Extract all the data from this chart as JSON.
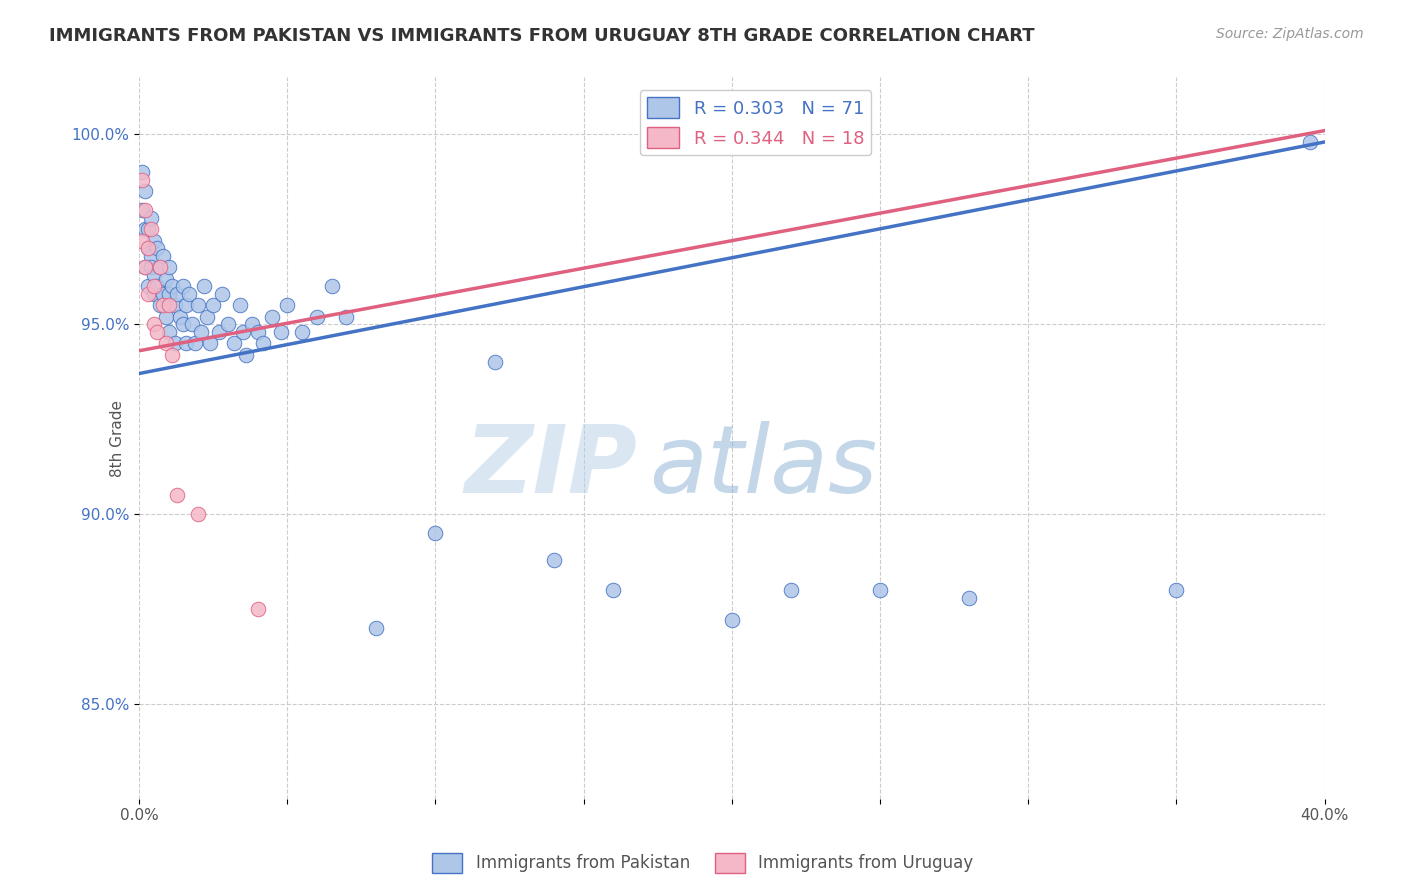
{
  "title": "IMMIGRANTS FROM PAKISTAN VS IMMIGRANTS FROM URUGUAY 8TH GRADE CORRELATION CHART",
  "source_text": "Source: ZipAtlas.com",
  "ylabel": "8th Grade",
  "xlim": [
    0.0,
    0.4
  ],
  "ylim": [
    0.825,
    1.015
  ],
  "xticks": [
    0.0,
    0.05,
    0.1,
    0.15,
    0.2,
    0.25,
    0.3,
    0.35,
    0.4
  ],
  "xticklabels": [
    "0.0%",
    "",
    "",
    "",
    "",
    "",
    "",
    "",
    "40.0%"
  ],
  "yticks": [
    0.85,
    0.9,
    0.95,
    1.0
  ],
  "yticklabels": [
    "85.0%",
    "90.0%",
    "95.0%",
    "100.0%"
  ],
  "pakistan_R": 0.303,
  "pakistan_N": 71,
  "uruguay_R": 0.344,
  "uruguay_N": 18,
  "pakistan_color": "#aec6e8",
  "pakistan_line_color": "#4472c4",
  "uruguay_color": "#f4b8c8",
  "uruguay_line_color": "#e06080",
  "legend_pakistan": "Immigrants from Pakistan",
  "legend_uruguay": "Immigrants from Uruguay",
  "watermark_zip": "ZIP",
  "watermark_atlas": "atlas",
  "pak_line_x0": 0.0,
  "pak_line_y0": 0.937,
  "pak_line_x1": 0.4,
  "pak_line_y1": 0.998,
  "uru_line_x0": 0.0,
  "uru_line_y0": 0.943,
  "uru_line_x1": 0.4,
  "uru_line_y1": 1.001,
  "pakistan_scatter_x": [
    0.001,
    0.001,
    0.002,
    0.002,
    0.002,
    0.003,
    0.003,
    0.003,
    0.004,
    0.004,
    0.004,
    0.005,
    0.005,
    0.005,
    0.006,
    0.006,
    0.007,
    0.007,
    0.008,
    0.008,
    0.009,
    0.009,
    0.01,
    0.01,
    0.01,
    0.011,
    0.012,
    0.012,
    0.013,
    0.014,
    0.015,
    0.015,
    0.016,
    0.016,
    0.017,
    0.018,
    0.019,
    0.02,
    0.021,
    0.022,
    0.023,
    0.024,
    0.025,
    0.027,
    0.028,
    0.03,
    0.032,
    0.034,
    0.035,
    0.036,
    0.038,
    0.04,
    0.042,
    0.045,
    0.048,
    0.05,
    0.055,
    0.06,
    0.065,
    0.07,
    0.08,
    0.1,
    0.12,
    0.14,
    0.16,
    0.2,
    0.22,
    0.25,
    0.28,
    0.35,
    0.395
  ],
  "pakistan_scatter_y": [
    0.98,
    0.99,
    0.965,
    0.985,
    0.975,
    0.97,
    0.96,
    0.975,
    0.968,
    0.978,
    0.965,
    0.972,
    0.963,
    0.958,
    0.97,
    0.96,
    0.965,
    0.955,
    0.968,
    0.958,
    0.962,
    0.952,
    0.965,
    0.958,
    0.948,
    0.96,
    0.955,
    0.945,
    0.958,
    0.952,
    0.96,
    0.95,
    0.955,
    0.945,
    0.958,
    0.95,
    0.945,
    0.955,
    0.948,
    0.96,
    0.952,
    0.945,
    0.955,
    0.948,
    0.958,
    0.95,
    0.945,
    0.955,
    0.948,
    0.942,
    0.95,
    0.948,
    0.945,
    0.952,
    0.948,
    0.955,
    0.948,
    0.952,
    0.96,
    0.952,
    0.87,
    0.895,
    0.94,
    0.888,
    0.88,
    0.872,
    0.88,
    0.88,
    0.878,
    0.88,
    0.998
  ],
  "uruguay_scatter_x": [
    0.001,
    0.001,
    0.002,
    0.002,
    0.003,
    0.003,
    0.004,
    0.005,
    0.005,
    0.006,
    0.007,
    0.008,
    0.009,
    0.01,
    0.011,
    0.013,
    0.02,
    0.04
  ],
  "uruguay_scatter_y": [
    0.988,
    0.972,
    0.98,
    0.965,
    0.97,
    0.958,
    0.975,
    0.96,
    0.95,
    0.948,
    0.965,
    0.955,
    0.945,
    0.955,
    0.942,
    0.905,
    0.9,
    0.875
  ]
}
